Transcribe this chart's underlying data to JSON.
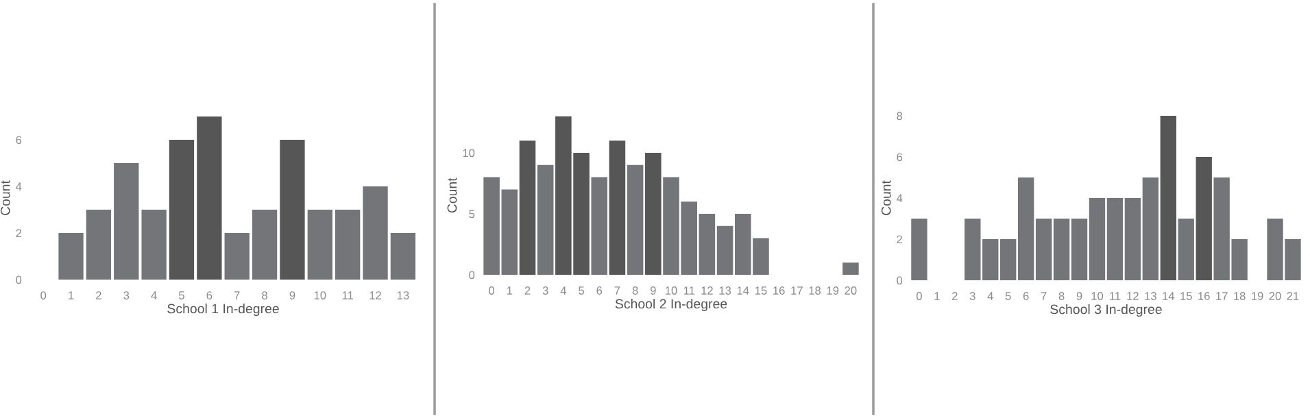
{
  "chart_data": [
    {
      "type": "bar",
      "categories": [
        "0",
        "1",
        "2",
        "3",
        "4",
        "5",
        "6",
        "7",
        "8",
        "9",
        "10",
        "11",
        "12",
        "13"
      ],
      "values": [
        0,
        2,
        3,
        5,
        3,
        6,
        7,
        2,
        3,
        6,
        3,
        3,
        4,
        2
      ],
      "colors": [
        "#747579",
        "#747579",
        "#747579",
        "#747579",
        "#747579",
        "#565656",
        "#565656",
        "#747579",
        "#747579",
        "#565656",
        "#747579",
        "#747579",
        "#747579",
        "#747579"
      ],
      "xlabel": "School 1 In-degree",
      "ylabel": "Count",
      "ylim": [
        0,
        7
      ],
      "yticks": [
        0,
        2,
        4,
        6
      ]
    },
    {
      "type": "bar",
      "categories": [
        "0",
        "1",
        "2",
        "3",
        "4",
        "5",
        "6",
        "7",
        "8",
        "9",
        "10",
        "11",
        "12",
        "13",
        "14",
        "15",
        "16",
        "17",
        "18",
        "19",
        "20"
      ],
      "values": [
        8,
        7,
        11,
        9,
        13,
        10,
        8,
        11,
        9,
        10,
        8,
        6,
        5,
        4,
        5,
        3,
        0,
        0,
        0,
        0,
        1
      ],
      "colors": [
        "#747579",
        "#747579",
        "#565656",
        "#747579",
        "#565656",
        "#565656",
        "#747579",
        "#565656",
        "#747579",
        "#565656",
        "#747579",
        "#747579",
        "#747579",
        "#747579",
        "#747579",
        "#747579",
        "#747579",
        "#747579",
        "#747579",
        "#747579",
        "#747579"
      ],
      "xlabel": "School 2 In-degree",
      "ylabel": "Count",
      "ylim": [
        0,
        13
      ],
      "yticks": [
        0,
        5,
        10
      ]
    },
    {
      "type": "bar",
      "categories": [
        "0",
        "1",
        "2",
        "3",
        "4",
        "5",
        "6",
        "7",
        "8",
        "9",
        "10",
        "11",
        "12",
        "13",
        "14",
        "15",
        "16",
        "17",
        "18",
        "19",
        "20",
        "21"
      ],
      "values": [
        3,
        0,
        0,
        3,
        2,
        2,
        5,
        3,
        3,
        3,
        4,
        4,
        4,
        5,
        8,
        3,
        6,
        5,
        2,
        0,
        3,
        2
      ],
      "colors": [
        "#747579",
        "#747579",
        "#747579",
        "#747579",
        "#747579",
        "#747579",
        "#747579",
        "#747579",
        "#747579",
        "#747579",
        "#747579",
        "#747579",
        "#747579",
        "#747579",
        "#565656",
        "#747579",
        "#565656",
        "#747579",
        "#747579",
        "#747579",
        "#747579",
        "#747579"
      ],
      "xlabel": "School 3 In-degree",
      "ylabel": "Count",
      "ylim": [
        0,
        8
      ],
      "yticks": [
        0,
        2,
        4,
        6,
        8
      ]
    }
  ]
}
